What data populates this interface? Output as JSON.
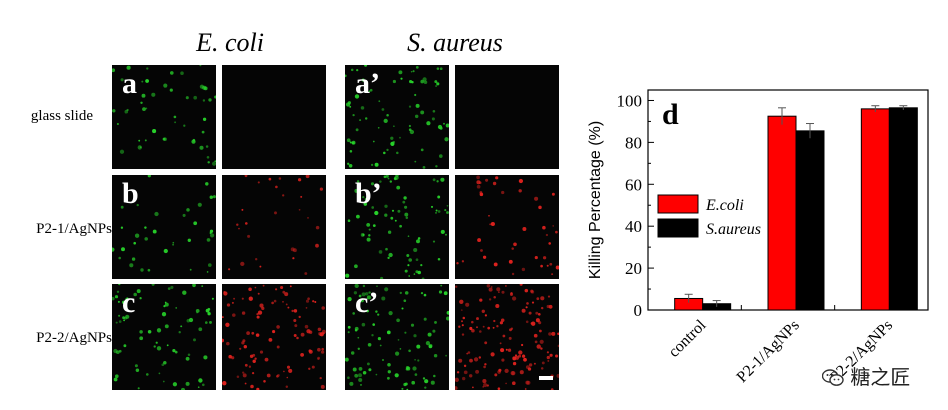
{
  "figure": {
    "column_headers": [
      "E. coli",
      "S. aureus"
    ],
    "row_labels": [
      "glass slide",
      "P2-1/AgNPs",
      "P2-2/AgNPs"
    ],
    "panel_letters": [
      "a",
      "a’",
      "b",
      "b’",
      "c",
      "c’"
    ],
    "stain_colors": {
      "live": "#27d12a",
      "dead": "#e0221e"
    },
    "microscopy_density": {
      "ecoli_live": [
        0.35,
        0.25,
        0.55
      ],
      "ecoli_dead": [
        0.0,
        0.2,
        0.75
      ],
      "saureus_live": [
        0.55,
        0.55,
        0.7
      ],
      "saureus_dead": [
        0.0,
        0.3,
        1.0
      ]
    }
  },
  "chart_data": {
    "type": "bar",
    "panel_letter": "d",
    "categories": [
      "control",
      "P2-1/AgNPs",
      "P2-2/AgNPs"
    ],
    "series": [
      {
        "name": "E.coli",
        "color": "#ff0000",
        "values": [
          5.5,
          92.5,
          96
        ],
        "errors": [
          2,
          4,
          1.5
        ]
      },
      {
        "name": "S.aureus",
        "color": "#000000",
        "values": [
          3,
          85.5,
          96.5
        ],
        "errors": [
          1.5,
          3.5,
          1
        ]
      }
    ],
    "ylabel": "Killing Percentage (%)",
    "ylim": [
      0,
      105
    ],
    "yticks": [
      0,
      20,
      40,
      60,
      80,
      100
    ],
    "legend_position": "center-left",
    "grid": false
  },
  "watermark": {
    "text": "糖之匠",
    "icon": "wechat-icon"
  }
}
